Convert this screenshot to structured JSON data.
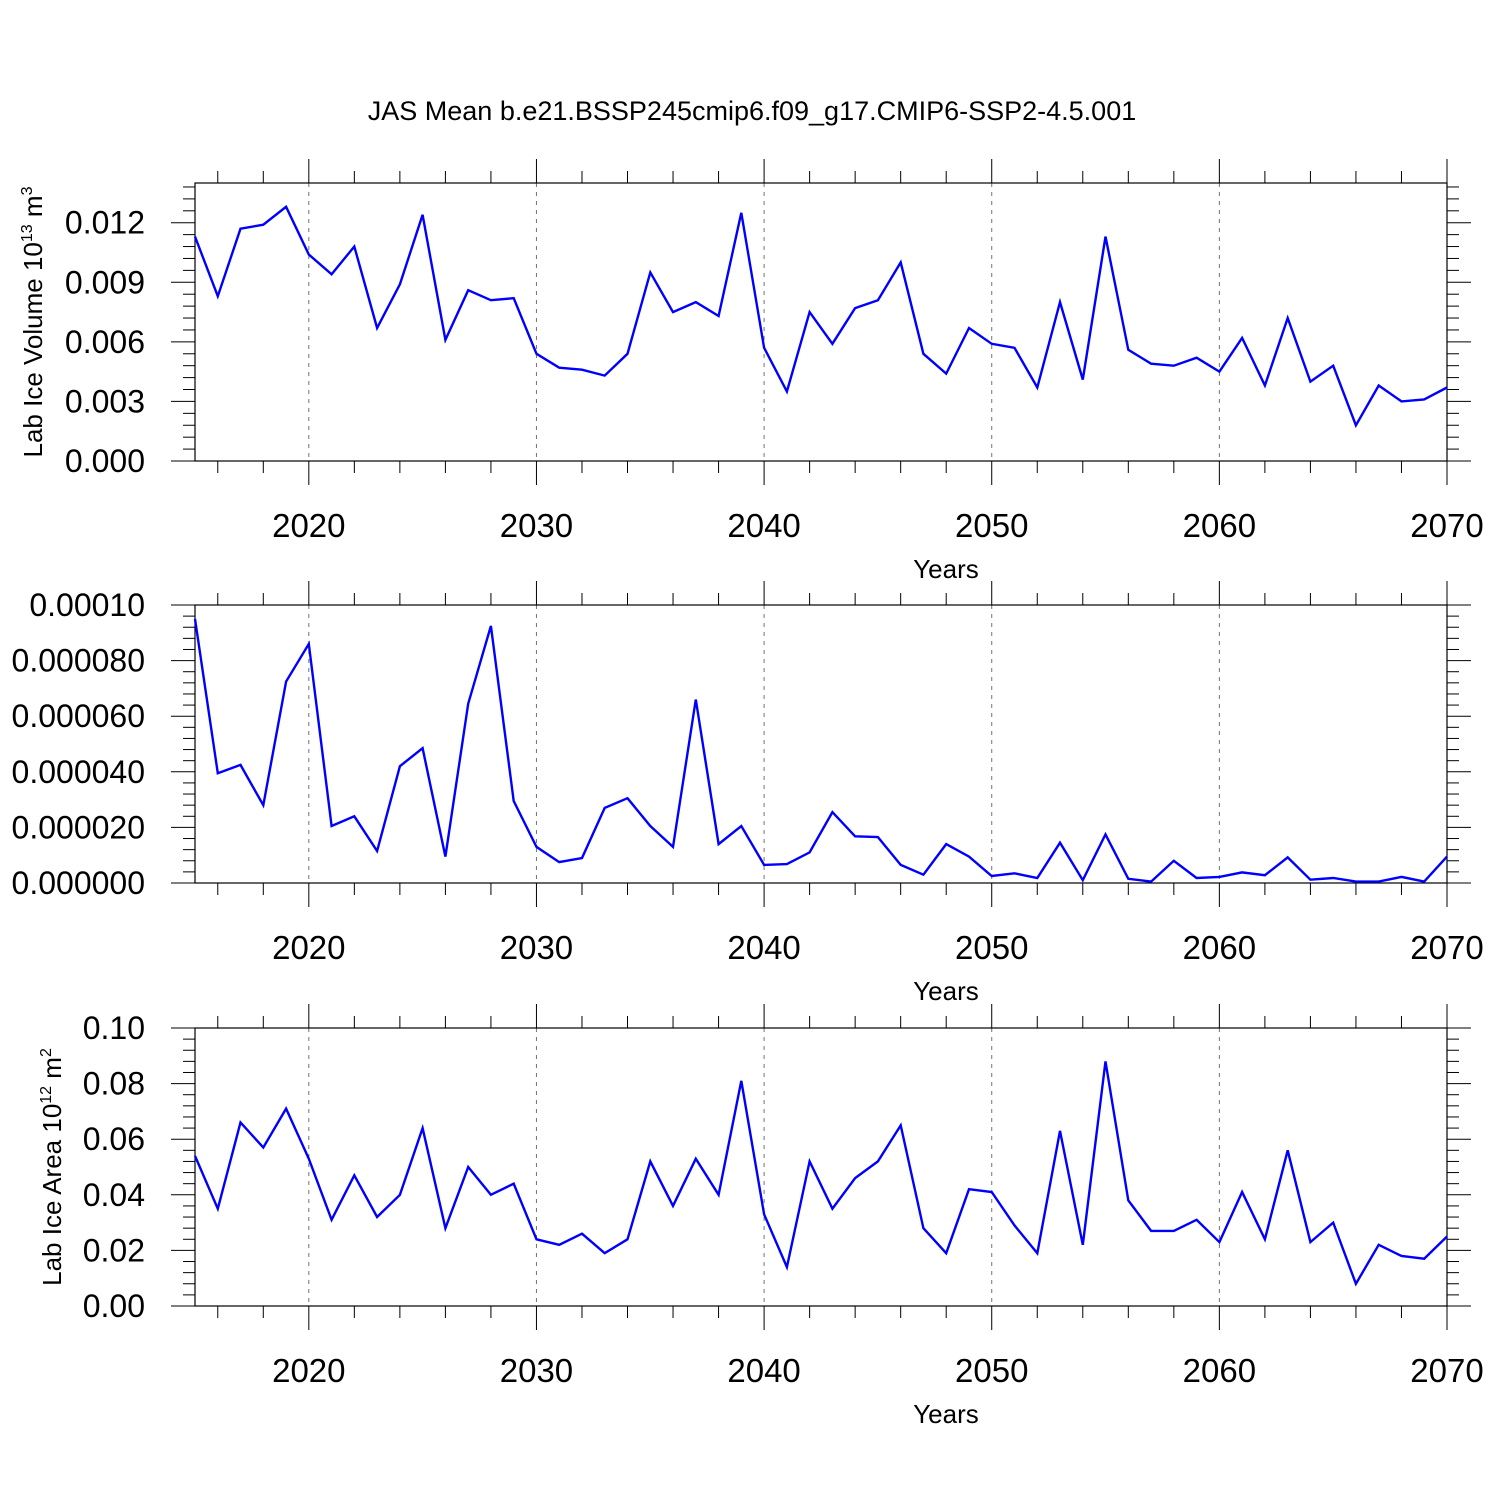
{
  "title": "JAS Mean b.e21.BSSP245cmip6.f09_g17.CMIP6-SSP2-4.5.001",
  "colors": {
    "series": "#0000ff",
    "axes": "#000000",
    "background": "#ffffff"
  },
  "chart_data": [
    {
      "type": "line",
      "ylabel": "Lab Ice Volume 10",
      "ylabel_exp": "13",
      "ylabel_unit": " m",
      "ylabel_unit_exp": "3",
      "xlabel": "Years",
      "xlim": [
        2015,
        2070
      ],
      "ylim": [
        0,
        0.014
      ],
      "xticks": [
        "2020",
        "2030",
        "2040",
        "2050",
        "2060",
        "2070"
      ],
      "xtick_values": [
        2020,
        2030,
        2040,
        2050,
        2060,
        2070
      ],
      "yticks": [
        "0.000",
        "0.003",
        "0.006",
        "0.009",
        "0.012"
      ],
      "ytick_values": [
        0,
        0.003,
        0.006,
        0.009,
        0.012
      ],
      "grid": "dashed vertical at major x ticks",
      "x": [
        2015,
        2016,
        2017,
        2018,
        2019,
        2020,
        2021,
        2022,
        2023,
        2024,
        2025,
        2026,
        2027,
        2028,
        2029,
        2030,
        2031,
        2032,
        2033,
        2034,
        2035,
        2036,
        2037,
        2038,
        2039,
        2040,
        2041,
        2042,
        2043,
        2044,
        2045,
        2046,
        2047,
        2048,
        2049,
        2050,
        2051,
        2052,
        2053,
        2054,
        2055,
        2056,
        2057,
        2058,
        2059,
        2060,
        2061,
        2062,
        2063,
        2064,
        2065,
        2066,
        2067,
        2068,
        2069,
        2070
      ],
      "y": [
        0.0113,
        0.0083,
        0.0117,
        0.0119,
        0.0128,
        0.0104,
        0.0094,
        0.0108,
        0.0067,
        0.0089,
        0.0124,
        0.0061,
        0.0086,
        0.0081,
        0.0082,
        0.0054,
        0.0047,
        0.0046,
        0.0043,
        0.0054,
        0.0095,
        0.0075,
        0.008,
        0.0073,
        0.0125,
        0.0057,
        0.0035,
        0.0075,
        0.0059,
        0.0077,
        0.0081,
        0.01,
        0.0054,
        0.0044,
        0.0067,
        0.0059,
        0.0057,
        0.0037,
        0.008,
        0.0041,
        0.0113,
        0.0056,
        0.0049,
        0.0048,
        0.0052,
        0.0045,
        0.0062,
        0.0038,
        0.0072,
        0.004,
        0.0048,
        0.0018,
        0.0038,
        0.003,
        0.0031,
        0.0037
      ]
    },
    {
      "type": "line",
      "ylabel": "",
      "xlabel": "Years",
      "xlim": [
        2015,
        2070
      ],
      "ylim": [
        0,
        0.0001
      ],
      "xticks": [
        "2020",
        "2030",
        "2040",
        "2050",
        "2060",
        "2070"
      ],
      "xtick_values": [
        2020,
        2030,
        2040,
        2050,
        2060,
        2070
      ],
      "yticks": [
        "0.000000",
        "0.000020",
        "0.000040",
        "0.000060",
        "0.000080",
        "0.00010"
      ],
      "ytick_values": [
        0,
        2e-05,
        4e-05,
        6e-05,
        8e-05,
        0.0001
      ],
      "grid": "dashed vertical at major x ticks",
      "x": [
        2015,
        2016,
        2017,
        2018,
        2019,
        2020,
        2021,
        2022,
        2023,
        2024,
        2025,
        2026,
        2027,
        2028,
        2029,
        2030,
        2031,
        2032,
        2033,
        2034,
        2035,
        2036,
        2037,
        2038,
        2039,
        2040,
        2041,
        2042,
        2043,
        2044,
        2045,
        2046,
        2047,
        2048,
        2049,
        2050,
        2051,
        2052,
        2053,
        2054,
        2055,
        2056,
        2057,
        2058,
        2059,
        2060,
        2061,
        2062,
        2063,
        2064,
        2065,
        2066,
        2067,
        2068,
        2069,
        2070
      ],
      "y": [
        9.5e-05,
        3.95e-05,
        4.25e-05,
        2.8e-05,
        7.25e-05,
        8.6e-05,
        2.05e-05,
        2.4e-05,
        1.15e-05,
        4.2e-05,
        4.85e-05,
        9.5e-06,
        6.45e-05,
        9.25e-05,
        2.95e-05,
        1.3e-05,
        7.5e-06,
        9e-06,
        2.7e-05,
        3.05e-05,
        2.05e-05,
        1.3e-05,
        6.6e-05,
        1.4e-05,
        2.05e-05,
        6.5e-06,
        6.8e-06,
        1.1e-05,
        2.55e-05,
        1.68e-05,
        1.65e-05,
        6.5e-06,
        3e-06,
        1.4e-05,
        9.5e-06,
        2.5e-06,
        3.5e-06,
        1.8e-06,
        1.45e-05,
        1e-06,
        1.75e-05,
        1.5e-06,
        5e-07,
        8e-06,
        1.8e-06,
        2.2e-06,
        3.8e-06,
        2.8e-06,
        9.2e-06,
        1.2e-06,
        1.8e-06,
        5e-07,
        5e-07,
        2.2e-06,
        5e-07,
        9.5e-06
      ]
    },
    {
      "type": "line",
      "ylabel": "Lab Ice Area 10",
      "ylabel_exp": "12",
      "ylabel_unit": " m",
      "ylabel_unit_exp": "2",
      "xlabel": "Years",
      "xlim": [
        2015,
        2070
      ],
      "ylim": [
        0,
        0.1
      ],
      "xticks": [
        "2020",
        "2030",
        "2040",
        "2050",
        "2060",
        "2070"
      ],
      "xtick_values": [
        2020,
        2030,
        2040,
        2050,
        2060,
        2070
      ],
      "yticks": [
        "0.00",
        "0.02",
        "0.04",
        "0.06",
        "0.08",
        "0.10"
      ],
      "ytick_values": [
        0,
        0.02,
        0.04,
        0.06,
        0.08,
        0.1
      ],
      "grid": "dashed vertical at major x ticks",
      "x": [
        2015,
        2016,
        2017,
        2018,
        2019,
        2020,
        2021,
        2022,
        2023,
        2024,
        2025,
        2026,
        2027,
        2028,
        2029,
        2030,
        2031,
        2032,
        2033,
        2034,
        2035,
        2036,
        2037,
        2038,
        2039,
        2040,
        2041,
        2042,
        2043,
        2044,
        2045,
        2046,
        2047,
        2048,
        2049,
        2050,
        2051,
        2052,
        2053,
        2054,
        2055,
        2056,
        2057,
        2058,
        2059,
        2060,
        2061,
        2062,
        2063,
        2064,
        2065,
        2066,
        2067,
        2068,
        2069,
        2070
      ],
      "y": [
        0.054,
        0.035,
        0.066,
        0.057,
        0.071,
        0.053,
        0.031,
        0.047,
        0.032,
        0.04,
        0.064,
        0.028,
        0.05,
        0.04,
        0.044,
        0.024,
        0.022,
        0.026,
        0.019,
        0.024,
        0.052,
        0.036,
        0.053,
        0.04,
        0.081,
        0.033,
        0.014,
        0.052,
        0.035,
        0.046,
        0.052,
        0.065,
        0.028,
        0.019,
        0.042,
        0.041,
        0.029,
        0.019,
        0.063,
        0.022,
        0.088,
        0.038,
        0.027,
        0.027,
        0.031,
        0.023,
        0.041,
        0.024,
        0.056,
        0.023,
        0.03,
        0.008,
        0.022,
        0.018,
        0.017,
        0.025
      ]
    }
  ]
}
